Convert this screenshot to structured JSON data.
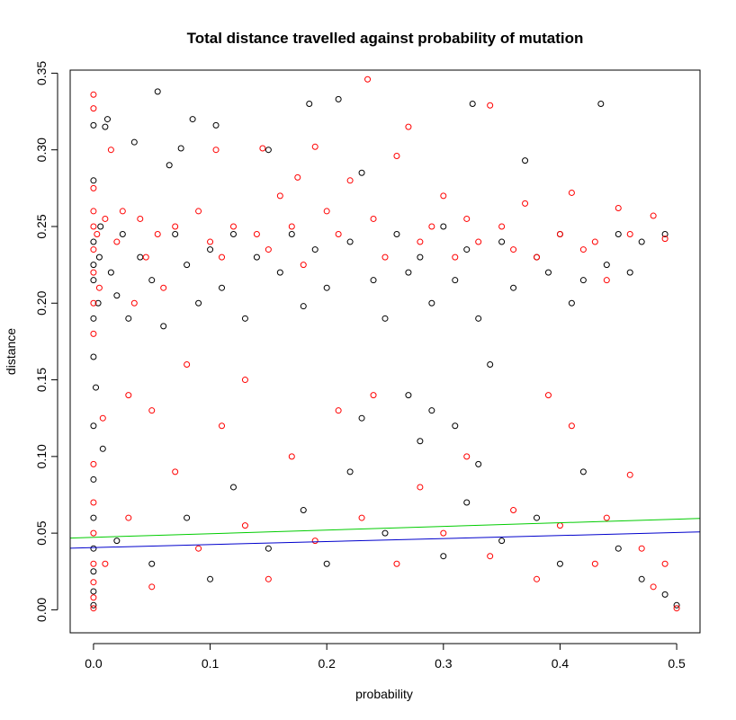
{
  "chart_data": {
    "type": "scatter",
    "title": "Total distance travelled against probability of mutation",
    "xlabel": "probability",
    "ylabel": "distance",
    "xlim": [
      -0.02,
      0.52
    ],
    "ylim": [
      -0.015,
      0.352
    ],
    "x_ticks": [
      0.0,
      0.1,
      0.2,
      0.3,
      0.4,
      0.5
    ],
    "x_tick_labels": [
      "0.0",
      "0.1",
      "0.2",
      "0.3",
      "0.4",
      "0.5"
    ],
    "y_ticks": [
      0.0,
      0.05,
      0.1,
      0.15,
      0.2,
      0.25,
      0.3,
      0.35
    ],
    "y_tick_labels": [
      "0.00",
      "0.05",
      "0.10",
      "0.15",
      "0.20",
      "0.25",
      "0.30",
      "0.35"
    ],
    "grid": false,
    "series_colors": [
      "#000000",
      "#ff0000"
    ],
    "series": [
      {
        "color": "#000000",
        "marker": "open-circle",
        "points": [
          [
            0.0,
            0.003
          ],
          [
            0.0,
            0.012
          ],
          [
            0.0,
            0.025
          ],
          [
            0.0,
            0.04
          ],
          [
            0.0,
            0.06
          ],
          [
            0.0,
            0.085
          ],
          [
            0.0,
            0.12
          ],
          [
            0.0,
            0.165
          ],
          [
            0.0,
            0.19
          ],
          [
            0.0,
            0.215
          ],
          [
            0.0,
            0.225
          ],
          [
            0.0,
            0.24
          ],
          [
            0.0,
            0.28
          ],
          [
            0.0,
            0.316
          ],
          [
            0.002,
            0.145
          ],
          [
            0.004,
            0.2
          ],
          [
            0.005,
            0.23
          ],
          [
            0.006,
            0.25
          ],
          [
            0.008,
            0.105
          ],
          [
            0.01,
            0.315
          ],
          [
            0.012,
            0.32
          ],
          [
            0.015,
            0.22
          ],
          [
            0.02,
            0.205
          ],
          [
            0.025,
            0.245
          ],
          [
            0.03,
            0.19
          ],
          [
            0.035,
            0.305
          ],
          [
            0.04,
            0.23
          ],
          [
            0.05,
            0.215
          ],
          [
            0.055,
            0.338
          ],
          [
            0.06,
            0.185
          ],
          [
            0.065,
            0.29
          ],
          [
            0.07,
            0.245
          ],
          [
            0.075,
            0.301
          ],
          [
            0.08,
            0.225
          ],
          [
            0.085,
            0.32
          ],
          [
            0.09,
            0.2
          ],
          [
            0.1,
            0.235
          ],
          [
            0.105,
            0.316
          ],
          [
            0.11,
            0.21
          ],
          [
            0.12,
            0.245
          ],
          [
            0.13,
            0.19
          ],
          [
            0.14,
            0.23
          ],
          [
            0.15,
            0.3
          ],
          [
            0.16,
            0.22
          ],
          [
            0.17,
            0.245
          ],
          [
            0.18,
            0.198
          ],
          [
            0.185,
            0.33
          ],
          [
            0.19,
            0.235
          ],
          [
            0.2,
            0.21
          ],
          [
            0.21,
            0.333
          ],
          [
            0.22,
            0.24
          ],
          [
            0.23,
            0.285
          ],
          [
            0.24,
            0.215
          ],
          [
            0.25,
            0.19
          ],
          [
            0.26,
            0.245
          ],
          [
            0.27,
            0.22
          ],
          [
            0.28,
            0.23
          ],
          [
            0.29,
            0.2
          ],
          [
            0.3,
            0.25
          ],
          [
            0.31,
            0.215
          ],
          [
            0.32,
            0.235
          ],
          [
            0.325,
            0.33
          ],
          [
            0.33,
            0.19
          ],
          [
            0.34,
            0.16
          ],
          [
            0.35,
            0.24
          ],
          [
            0.36,
            0.21
          ],
          [
            0.37,
            0.293
          ],
          [
            0.38,
            0.23
          ],
          [
            0.39,
            0.22
          ],
          [
            0.4,
            0.245
          ],
          [
            0.41,
            0.2
          ],
          [
            0.42,
            0.215
          ],
          [
            0.435,
            0.33
          ],
          [
            0.44,
            0.225
          ],
          [
            0.45,
            0.245
          ],
          [
            0.46,
            0.22
          ],
          [
            0.47,
            0.24
          ],
          [
            0.49,
            0.245
          ],
          [
            0.02,
            0.045
          ],
          [
            0.05,
            0.03
          ],
          [
            0.08,
            0.06
          ],
          [
            0.1,
            0.02
          ],
          [
            0.12,
            0.08
          ],
          [
            0.15,
            0.04
          ],
          [
            0.18,
            0.065
          ],
          [
            0.2,
            0.03
          ],
          [
            0.22,
            0.09
          ],
          [
            0.25,
            0.05
          ],
          [
            0.28,
            0.11
          ],
          [
            0.3,
            0.035
          ],
          [
            0.32,
            0.07
          ],
          [
            0.35,
            0.045
          ],
          [
            0.38,
            0.06
          ],
          [
            0.4,
            0.03
          ],
          [
            0.42,
            0.09
          ],
          [
            0.45,
            0.04
          ],
          [
            0.47,
            0.02
          ],
          [
            0.49,
            0.01
          ],
          [
            0.5,
            0.003
          ],
          [
            0.29,
            0.13
          ],
          [
            0.31,
            0.12
          ],
          [
            0.27,
            0.14
          ],
          [
            0.23,
            0.125
          ],
          [
            0.33,
            0.095
          ]
        ]
      },
      {
        "color": "#ff0000",
        "marker": "open-circle",
        "points": [
          [
            0.0,
            0.001
          ],
          [
            0.0,
            0.008
          ],
          [
            0.0,
            0.018
          ],
          [
            0.0,
            0.03
          ],
          [
            0.0,
            0.05
          ],
          [
            0.0,
            0.07
          ],
          [
            0.0,
            0.095
          ],
          [
            0.0,
            0.18
          ],
          [
            0.0,
            0.2
          ],
          [
            0.0,
            0.22
          ],
          [
            0.0,
            0.235
          ],
          [
            0.0,
            0.25
          ],
          [
            0.0,
            0.26
          ],
          [
            0.0,
            0.275
          ],
          [
            0.0,
            0.327
          ],
          [
            0.0,
            0.336
          ],
          [
            0.003,
            0.245
          ],
          [
            0.005,
            0.21
          ],
          [
            0.008,
            0.125
          ],
          [
            0.01,
            0.255
          ],
          [
            0.015,
            0.3
          ],
          [
            0.02,
            0.24
          ],
          [
            0.025,
            0.26
          ],
          [
            0.03,
            0.14
          ],
          [
            0.035,
            0.2
          ],
          [
            0.04,
            0.255
          ],
          [
            0.045,
            0.23
          ],
          [
            0.05,
            0.13
          ],
          [
            0.055,
            0.245
          ],
          [
            0.06,
            0.21
          ],
          [
            0.07,
            0.25
          ],
          [
            0.08,
            0.16
          ],
          [
            0.09,
            0.26
          ],
          [
            0.1,
            0.24
          ],
          [
            0.105,
            0.3
          ],
          [
            0.11,
            0.23
          ],
          [
            0.12,
            0.25
          ],
          [
            0.13,
            0.15
          ],
          [
            0.14,
            0.245
          ],
          [
            0.145,
            0.301
          ],
          [
            0.15,
            0.235
          ],
          [
            0.16,
            0.27
          ],
          [
            0.17,
            0.25
          ],
          [
            0.175,
            0.282
          ],
          [
            0.18,
            0.225
          ],
          [
            0.19,
            0.302
          ],
          [
            0.2,
            0.26
          ],
          [
            0.21,
            0.245
          ],
          [
            0.22,
            0.28
          ],
          [
            0.235,
            0.346
          ],
          [
            0.24,
            0.255
          ],
          [
            0.25,
            0.23
          ],
          [
            0.26,
            0.296
          ],
          [
            0.27,
            0.315
          ],
          [
            0.28,
            0.24
          ],
          [
            0.29,
            0.25
          ],
          [
            0.3,
            0.27
          ],
          [
            0.31,
            0.23
          ],
          [
            0.32,
            0.255
          ],
          [
            0.33,
            0.24
          ],
          [
            0.34,
            0.329
          ],
          [
            0.35,
            0.25
          ],
          [
            0.36,
            0.235
          ],
          [
            0.37,
            0.265
          ],
          [
            0.38,
            0.23
          ],
          [
            0.39,
            0.14
          ],
          [
            0.4,
            0.245
          ],
          [
            0.41,
            0.272
          ],
          [
            0.42,
            0.235
          ],
          [
            0.43,
            0.24
          ],
          [
            0.44,
            0.215
          ],
          [
            0.45,
            0.262
          ],
          [
            0.46,
            0.245
          ],
          [
            0.48,
            0.257
          ],
          [
            0.49,
            0.242
          ],
          [
            0.01,
            0.03
          ],
          [
            0.03,
            0.06
          ],
          [
            0.05,
            0.015
          ],
          [
            0.07,
            0.09
          ],
          [
            0.09,
            0.04
          ],
          [
            0.11,
            0.12
          ],
          [
            0.13,
            0.055
          ],
          [
            0.15,
            0.02
          ],
          [
            0.17,
            0.1
          ],
          [
            0.19,
            0.045
          ],
          [
            0.21,
            0.13
          ],
          [
            0.23,
            0.06
          ],
          [
            0.24,
            0.14
          ],
          [
            0.26,
            0.03
          ],
          [
            0.28,
            0.08
          ],
          [
            0.3,
            0.05
          ],
          [
            0.32,
            0.1
          ],
          [
            0.34,
            0.035
          ],
          [
            0.36,
            0.065
          ],
          [
            0.38,
            0.02
          ],
          [
            0.4,
            0.055
          ],
          [
            0.41,
            0.12
          ],
          [
            0.43,
            0.03
          ],
          [
            0.44,
            0.06
          ],
          [
            0.46,
            0.088
          ],
          [
            0.47,
            0.04
          ],
          [
            0.48,
            0.015
          ],
          [
            0.49,
            0.03
          ],
          [
            0.5,
            0.001
          ]
        ]
      }
    ],
    "trend_lines": [
      {
        "color": "#00cc00",
        "from": [
          -0.02,
          0.0468
        ],
        "to": [
          0.52,
          0.0596
        ]
      },
      {
        "color": "#0000cc",
        "from": [
          -0.02,
          0.0402
        ],
        "to": [
          0.52,
          0.0508
        ]
      }
    ]
  }
}
